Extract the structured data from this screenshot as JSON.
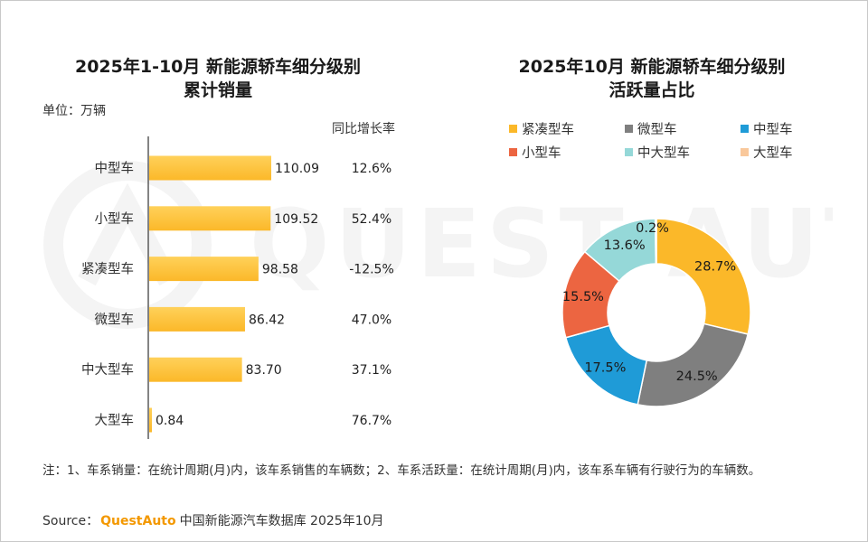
{
  "watermark": "QUEST AUTO",
  "chart_data": [
    {
      "type": "bar",
      "orientation": "horizontal",
      "title": [
        "2025年1-10月 新能源轿车细分级别",
        "累计销量"
      ],
      "unit_label": "单位：万辆",
      "yoy_header": "同比增长率",
      "categories": [
        "中型车",
        "小型车",
        "紧凑型车",
        "微型车",
        "中大型车",
        "大型车"
      ],
      "values": [
        110.09,
        109.52,
        98.58,
        86.42,
        83.7,
        0.84
      ],
      "value_labels": [
        "110.09",
        "109.52",
        "98.58",
        "86.42",
        "83.70",
        "0.84"
      ],
      "yoy": [
        "12.6%",
        "52.4%",
        "-12.5%",
        "47.0%",
        "37.1%",
        "76.7%"
      ],
      "xlim": [
        0,
        130
      ],
      "color": "#fbb829"
    },
    {
      "type": "pie",
      "donut": true,
      "title": [
        "2025年10月 新能源轿车细分级别",
        "活跃量占比"
      ],
      "slices": [
        {
          "name": "紧凑型车",
          "value": 28.7,
          "label": "28.7%",
          "color": "#fbb829"
        },
        {
          "name": "微型车",
          "value": 24.5,
          "label": "24.5%",
          "color": "#7f7f7f"
        },
        {
          "name": "中型车",
          "value": 17.5,
          "label": "17.5%",
          "color": "#1f9bd7"
        },
        {
          "name": "小型车",
          "value": 15.5,
          "label": "15.5%",
          "color": "#ec6541"
        },
        {
          "name": "中大型车",
          "value": 13.6,
          "label": "13.6%",
          "color": "#95d8d8"
        },
        {
          "name": "大型车",
          "value": 0.2,
          "label": "0.2%",
          "color": "#f9c89b"
        }
      ],
      "legend": [
        "紧凑型车",
        "微型车",
        "中型车",
        "小型车",
        "中大型车",
        "大型车"
      ]
    }
  ],
  "footer": {
    "note": "注：1、车系销量：在统计周期(月)内，该车系销售的车辆数；2、车系活跃量：在统计周期(月)内，该车系车辆有行驶行为的车辆数。",
    "source_prefix": "Source：",
    "source_brand": "QuestAuto",
    "source_text": "中国新能源汽车数据库 2025年10月"
  }
}
